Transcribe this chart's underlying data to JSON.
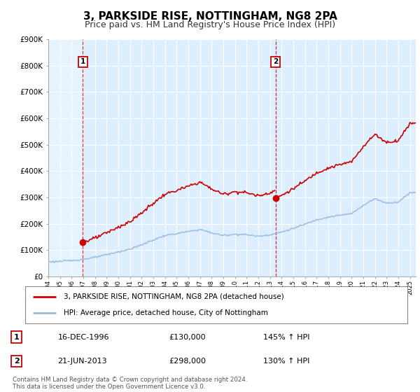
{
  "title": "3, PARKSIDE RISE, NOTTINGHAM, NG8 2PA",
  "subtitle": "Price paid vs. HM Land Registry's House Price Index (HPI)",
  "ylim": [
    0,
    900000
  ],
  "yticks": [
    0,
    100000,
    200000,
    300000,
    400000,
    500000,
    600000,
    700000,
    800000,
    900000
  ],
  "ytick_labels": [
    "£0",
    "£100K",
    "£200K",
    "£300K",
    "£400K",
    "£500K",
    "£600K",
    "£700K",
    "£800K",
    "£900K"
  ],
  "xlim_start": 1994.0,
  "xlim_end": 2025.5,
  "sale1_x": 1996.96,
  "sale1_y": 130000,
  "sale2_x": 2013.47,
  "sale2_y": 298000,
  "red_color": "#cc0000",
  "blue_color": "#99bbdd",
  "plot_bg_color": "#ddeeff",
  "legend_line1": "3, PARKSIDE RISE, NOTTINGHAM, NG8 2PA (detached house)",
  "legend_line2": "HPI: Average price, detached house, City of Nottingham",
  "sale1_date": "16-DEC-1996",
  "sale1_price": "£130,000",
  "sale1_hpi": "145% ↑ HPI",
  "sale2_date": "21-JUN-2013",
  "sale2_price": "£298,000",
  "sale2_hpi": "130% ↑ HPI",
  "footer": "Contains HM Land Registry data © Crown copyright and database right 2024.\nThis data is licensed under the Open Government Licence v3.0.",
  "grid_color": "#ccddee",
  "title_fontsize": 11,
  "subtitle_fontsize": 9,
  "tick_fontsize": 7.5
}
